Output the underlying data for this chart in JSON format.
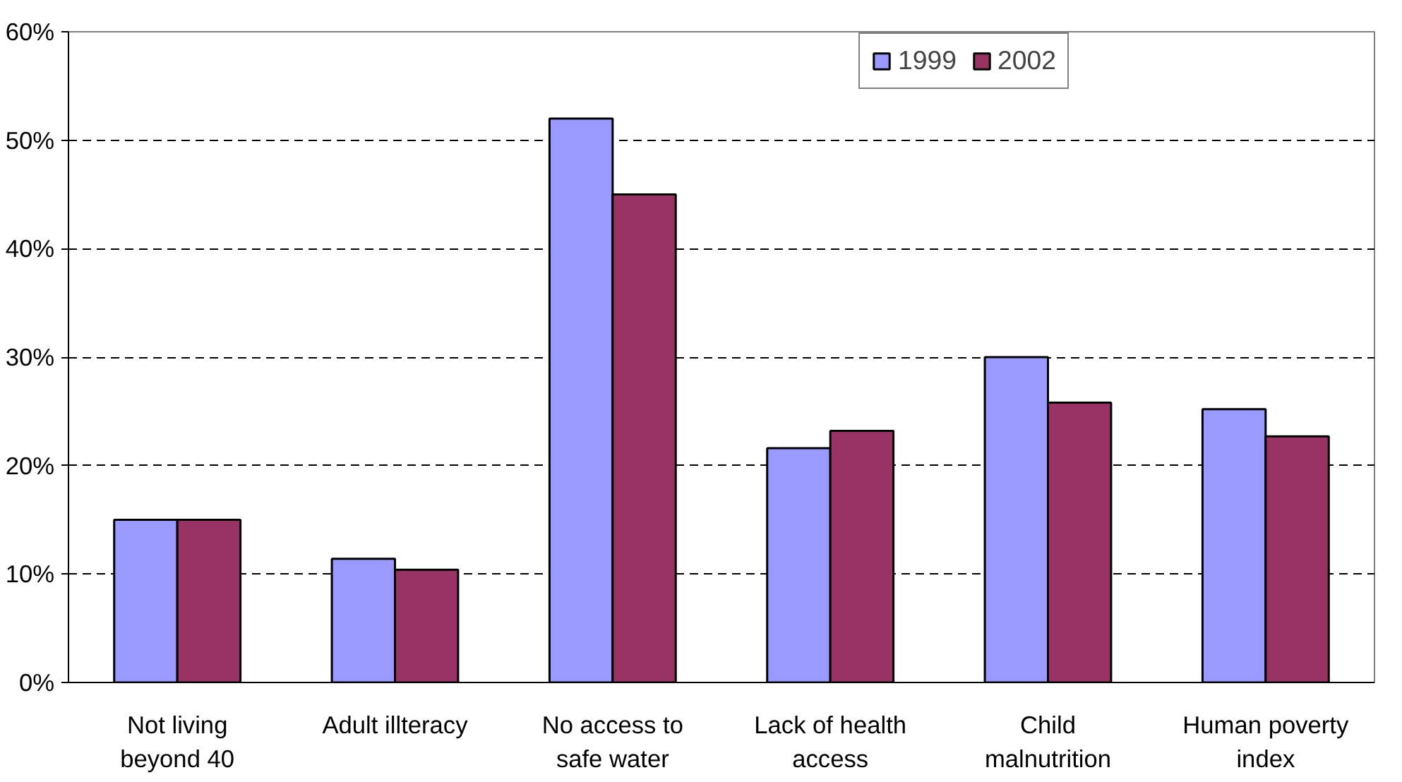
{
  "chart_data": {
    "type": "bar",
    "categories": [
      "Not living\nbeyond 40",
      "Adult illteracy",
      "No access to\nsafe water",
      "Lack of health\naccess",
      "Child\nmalnutrition",
      "Human poverty\nindex"
    ],
    "series": [
      {
        "name": "1999",
        "color": "#9999ff",
        "values": [
          15,
          11.4,
          52,
          21.6,
          30,
          25.2
        ]
      },
      {
        "name": "2002",
        "color": "#993366",
        "values": [
          15,
          10.4,
          45,
          23.2,
          25.8,
          22.7
        ]
      }
    ],
    "ylim": [
      0,
      60
    ],
    "yticks": [
      {
        "value": 0,
        "label": "0%"
      },
      {
        "value": 10,
        "label": "10%"
      },
      {
        "value": 20,
        "label": "20%"
      },
      {
        "value": 30,
        "label": "30%"
      },
      {
        "value": 40,
        "label": "40%"
      },
      {
        "value": 50,
        "label": "50%"
      },
      {
        "value": 60,
        "label": "60%"
      }
    ],
    "grid": "y",
    "legend": "top"
  }
}
